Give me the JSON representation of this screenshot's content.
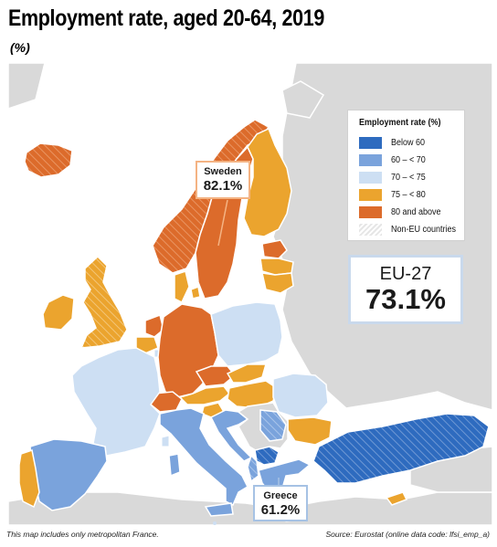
{
  "title": "Employment rate, aged 20-64, 2019",
  "subtitle": "(%)",
  "legend": {
    "title": "Employment rate (%)",
    "items": [
      {
        "label": "Below 60",
        "color": "#2e6bbf"
      },
      {
        "label": "60 – < 70",
        "color": "#7aa3dc"
      },
      {
        "label": "70 – < 75",
        "color": "#cddff3"
      },
      {
        "label": "75 – < 80",
        "color": "#eba42e"
      },
      {
        "label": "80 and above",
        "color": "#dc6b2b"
      },
      {
        "label": "Non-EU countries",
        "color": "#d9d9d9"
      }
    ]
  },
  "eu_total": {
    "label": "EU-27",
    "value": "73.1%"
  },
  "callouts": {
    "sweden": {
      "name": "Sweden",
      "value": "82.1%"
    },
    "greece": {
      "name": "Greece",
      "value": "61.2%"
    }
  },
  "footnote": "This map includes only metropolitan France.",
  "source": "Source: Eurostat (online data code: lfsi_emp_a)",
  "colors": {
    "sea": "#ffffff",
    "non_eu": "#d9d9d9",
    "border": "#ffffff",
    "below_60": "#2e6bbf",
    "60_70": "#7aa3dc",
    "70_75": "#cddff3",
    "75_80": "#eba42e",
    "80_plus": "#dc6b2b"
  }
}
